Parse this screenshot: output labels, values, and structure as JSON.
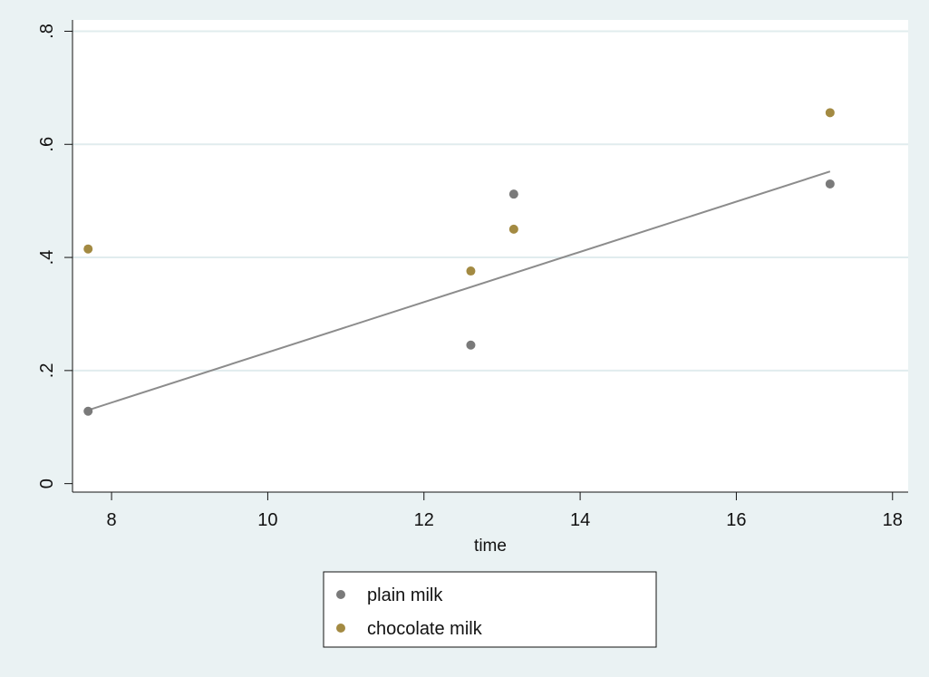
{
  "chart_data": {
    "type": "scatter",
    "title": "",
    "xlabel": "time",
    "ylabel": "",
    "xlim": [
      7.5,
      18.2
    ],
    "ylim": [
      -0.015,
      0.82
    ],
    "xticks": [
      8,
      10,
      12,
      14,
      16,
      18
    ],
    "yticks": [
      0,
      0.2,
      0.4,
      0.6,
      0.8
    ],
    "xtick_labels": [
      "8",
      "10",
      "12",
      "14",
      "16",
      "18"
    ],
    "ytick_labels": [
      "0",
      ".2",
      ".4",
      ".6",
      ".8"
    ],
    "grid": "horizontal",
    "legend_position": "bottom",
    "series": [
      {
        "name": "plain milk",
        "color": "#7a7a7a",
        "x": [
          7.7,
          12.6,
          13.15,
          17.2
        ],
        "y": [
          0.128,
          0.245,
          0.512,
          0.53
        ]
      },
      {
        "name": "chocolate milk",
        "color": "#a38a42",
        "x": [
          7.7,
          12.6,
          13.15,
          17.2
        ],
        "y": [
          0.415,
          0.376,
          0.45,
          0.656
        ]
      }
    ],
    "fit_line": {
      "color": "#8c8c8c",
      "x": [
        7.7,
        17.2
      ],
      "y": [
        0.13,
        0.552
      ]
    }
  }
}
